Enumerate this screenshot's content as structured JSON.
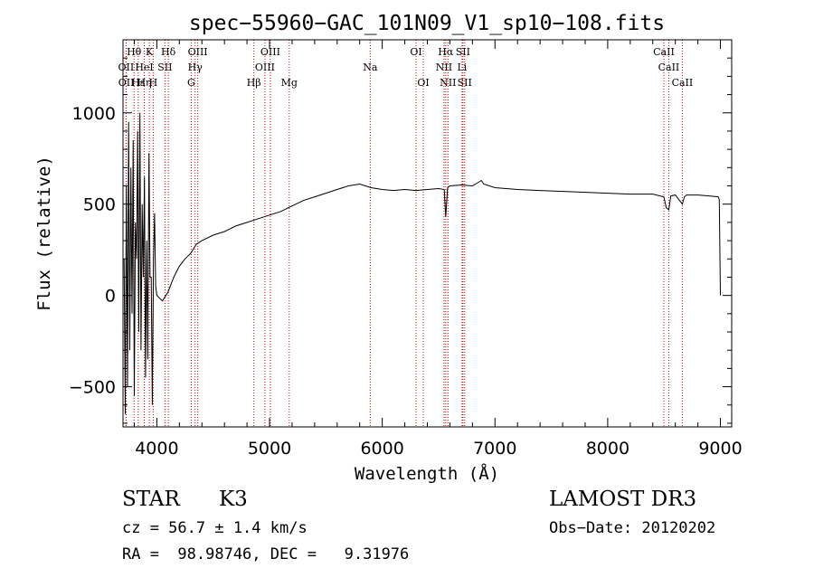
{
  "chart_data": {
    "type": "line",
    "title": "spec−55960−GAC_101N09_V1_sp10−108.fits",
    "xlabel": "Wavelength (Å)",
    "ylabel": "Flux (relative)",
    "xlim": [
      3700,
      9100
    ],
    "ylim": [
      -720,
      1400
    ],
    "x_ticks": [
      4000,
      5000,
      6000,
      7000,
      8000,
      9000
    ],
    "x_tick_labels": [
      "4000",
      "5000",
      "6000",
      "7000",
      "8000",
      "9000"
    ],
    "y_ticks": [
      -500,
      0,
      500,
      1000
    ],
    "y_tick_labels": [
      "−500",
      "0",
      "500",
      "1000"
    ],
    "series": [
      {
        "name": "flux",
        "x": [
          3710,
          3720,
          3730,
          3740,
          3750,
          3760,
          3770,
          3780,
          3790,
          3800,
          3810,
          3820,
          3830,
          3840,
          3850,
          3860,
          3870,
          3880,
          3890,
          3900,
          3910,
          3920,
          3930,
          3940,
          3950,
          3960,
          3970,
          3980,
          3990,
          4000,
          4050,
          4100,
          4150,
          4200,
          4250,
          4300,
          4350,
          4400,
          4500,
          4600,
          4700,
          4800,
          4900,
          5000,
          5100,
          5200,
          5300,
          5400,
          5500,
          5600,
          5700,
          5800,
          5900,
          6000,
          6100,
          6200,
          6300,
          6400,
          6500,
          6550,
          6563,
          6580,
          6600,
          6700,
          6800,
          6880,
          6900,
          7000,
          7200,
          7400,
          7600,
          7800,
          8000,
          8200,
          8400,
          8498,
          8520,
          8542,
          8560,
          8600,
          8662,
          8680,
          8700,
          8800,
          8900,
          8980,
          8990,
          9000
        ],
        "y": [
          200,
          -650,
          600,
          -500,
          950,
          -300,
          700,
          -100,
          850,
          -550,
          400,
          200,
          900,
          -200,
          1000,
          -300,
          500,
          100,
          650,
          -450,
          300,
          -350,
          780,
          100,
          100,
          -600,
          200,
          450,
          50,
          0,
          -30,
          20,
          100,
          160,
          200,
          230,
          280,
          300,
          330,
          350,
          380,
          400,
          420,
          440,
          460,
          490,
          520,
          540,
          560,
          580,
          600,
          610,
          590,
          580,
          575,
          580,
          575,
          580,
          585,
          580,
          430,
          590,
          600,
          605,
          600,
          630,
          610,
          590,
          580,
          575,
          570,
          565,
          560,
          555,
          555,
          540,
          480,
          470,
          545,
          550,
          500,
          540,
          550,
          550,
          545,
          540,
          525,
          0
        ]
      }
    ],
    "lines": [
      {
        "label": "Hθ",
        "x": 3798,
        "row": 0
      },
      {
        "label": "K",
        "x": 3934,
        "row": 0
      },
      {
        "label": "Hδ",
        "x": 4102,
        "row": 0
      },
      {
        "label": "OIII",
        "x": 4363,
        "row": 0
      },
      {
        "label": "OIII",
        "x": 5007,
        "row": 0
      },
      {
        "label": "OI",
        "x": 6300,
        "row": 0
      },
      {
        "label": "Hα",
        "x": 6563,
        "row": 0
      },
      {
        "label": "SII",
        "x": 6716,
        "row": 0
      },
      {
        "label": "CaII",
        "x": 8498,
        "row": 0
      },
      {
        "label": "OII",
        "x": 3727,
        "row": 1
      },
      {
        "label": "HeI",
        "x": 3889,
        "row": 1
      },
      {
        "label": "SII",
        "x": 4072,
        "row": 1
      },
      {
        "label": "Hγ",
        "x": 4340,
        "row": 1
      },
      {
        "label": "OIII",
        "x": 4959,
        "row": 1
      },
      {
        "label": "Na",
        "x": 5893,
        "row": 1
      },
      {
        "label": "NII",
        "x": 6548,
        "row": 1
      },
      {
        "label": "Li",
        "x": 6708,
        "row": 1
      },
      {
        "label": "CaII",
        "x": 8542,
        "row": 1
      },
      {
        "label": "OII",
        "x": 3729,
        "row": 2
      },
      {
        "label": "Hε",
        "x": 3835,
        "row": 2
      },
      {
        "label": "Hη",
        "x": 3889,
        "row": 2
      },
      {
        "label": "H",
        "x": 3968,
        "row": 2
      },
      {
        "label": "G",
        "x": 4305,
        "row": 2
      },
      {
        "label": "Hβ",
        "x": 4861,
        "row": 2
      },
      {
        "label": "Mg",
        "x": 5175,
        "row": 2
      },
      {
        "label": "OI",
        "x": 6364,
        "row": 2
      },
      {
        "label": "NII",
        "x": 6583,
        "row": 2
      },
      {
        "label": "SII",
        "x": 6731,
        "row": 2
      },
      {
        "label": "CaII",
        "x": 8662,
        "row": 2
      }
    ]
  },
  "info": {
    "class_label": "STAR",
    "subclass": "K3",
    "survey": "LAMOST DR3",
    "cz": "cz = 56.7 ± 1.4 km/s",
    "obs_date": "Obs−Date: 20120202",
    "radec": "RA =  98.98746, DEC =   9.31976"
  }
}
